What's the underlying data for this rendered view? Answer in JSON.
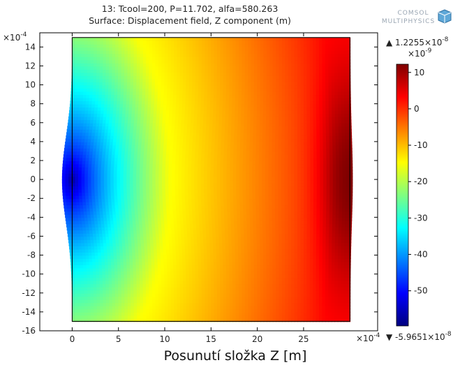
{
  "header": {
    "line1": "13: Tcool=200, P=11.702, alfa=580.263",
    "line2": "Surface: Displacement field, Z component (m)"
  },
  "logo": {
    "line1": "COMSOL",
    "line2": "MULTIPHYSICS"
  },
  "caption": "Posunutí složka Z [m]",
  "colors": {
    "colormap": [
      "#00007f",
      "#0000ff",
      "#0080ff",
      "#00ffff",
      "#80ff80",
      "#ffff00",
      "#ff8000",
      "#ff0000",
      "#7f0000"
    ],
    "frame": "#000000"
  },
  "chart_data": {
    "type": "heatmap",
    "title": "13: Tcool=200, P=11.702, alfa=580.263",
    "subtitle": "Surface: Displacement field, Z component (m)",
    "xlabel": "",
    "ylabel": "",
    "x_scale_label": "×10",
    "x_scale_exp": "-4",
    "y_scale_label": "×10",
    "y_scale_exp": "-4",
    "xlim": [
      -3.5,
      33
    ],
    "ylim": [
      -16,
      15.5
    ],
    "xticks": [
      0,
      5,
      10,
      15,
      20,
      25
    ],
    "xtick_labels": [
      "0",
      "5",
      "10",
      "15",
      "20",
      "25"
    ],
    "yticks": [
      14,
      12,
      10,
      8,
      6,
      4,
      2,
      0,
      -2,
      -4,
      -6,
      -8,
      -10,
      -12,
      -14,
      -16
    ],
    "ytick_labels": [
      "14",
      "12",
      "10",
      "8",
      "6",
      "4",
      "2",
      "0",
      "-2",
      "-4",
      "-6",
      "-8",
      "-10",
      "-12",
      "-14",
      "-16"
    ],
    "domain": {
      "x": [
        0,
        30
      ],
      "y": [
        -15,
        15
      ]
    },
    "colorbar": {
      "scale_label": "×10",
      "scale_exp": "-9",
      "range": [
        -59.651,
        12.255
      ],
      "ticks": [
        10,
        0,
        -10,
        -20,
        -30,
        -40,
        -50
      ],
      "tick_labels": [
        "10",
        "0",
        "-10",
        "-20",
        "-30",
        "-40",
        "-50"
      ],
      "max_label": "▲ 1.2255×10",
      "max_exp": "-8",
      "min_label": "▼ -5.9651×10",
      "min_exp": "-8"
    }
  }
}
